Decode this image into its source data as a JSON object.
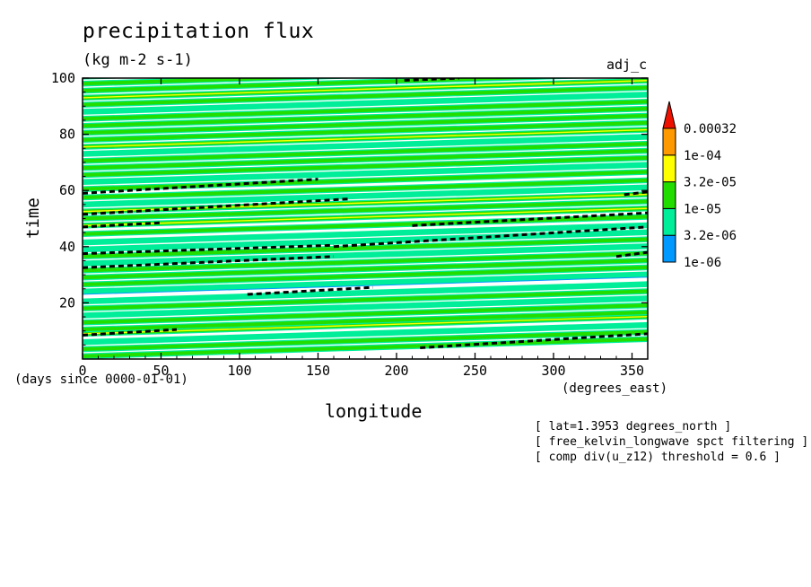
{
  "chart_data": {
    "type": "heatmap",
    "title": "precipitation flux",
    "units": "(kg m-2 s-1)",
    "run_label": "adj_c",
    "xlabel": "longitude",
    "x_units": "(degrees_east)",
    "ylabel": "time",
    "time_origin": "(days since 0000-01-01)",
    "xlim": [
      0,
      360
    ],
    "ylim": [
      0,
      100
    ],
    "x_ticks": [
      0,
      50,
      100,
      150,
      200,
      250,
      300,
      350
    ],
    "y_ticks": [
      20,
      40,
      60,
      80,
      100
    ],
    "colorbar": {
      "labels": [
        "0.00032",
        "1e-04",
        "3.2e-05",
        "1e-05",
        "3.2e-06",
        "1e-06"
      ],
      "colors": [
        "#0099ff",
        "#00ee99",
        "#22dd00",
        "#ffff00",
        "#ff9900",
        "#ee1100"
      ],
      "extend": "max"
    },
    "notes": [
      "[ lat=1.3953 degrees_north ]",
      "[ free_kelvin_longwave spct filtering ]",
      "[ comp div(u_z12) threshold = 0.6 ]"
    ],
    "kelvin_wave_slope_days_per_degree": 0.017,
    "bands": [
      {
        "t0": 1.0,
        "level": 2
      },
      {
        "t0": 3.5,
        "level": 2
      },
      {
        "t0": 6.0,
        "level": 1
      },
      {
        "t0": 9.0,
        "level": 3
      },
      {
        "t0": 10.5,
        "level": 2
      },
      {
        "t0": 13.0,
        "level": 2
      },
      {
        "t0": 15.5,
        "level": 1
      },
      {
        "t0": 18.0,
        "level": 2
      },
      {
        "t0": 20.5,
        "level": 1
      },
      {
        "t0": 24.0,
        "level": 0
      },
      {
        "t0": 26.5,
        "level": 2
      },
      {
        "t0": 29.0,
        "level": 2
      },
      {
        "t0": 31.5,
        "level": 2
      },
      {
        "t0": 34.0,
        "level": 1
      },
      {
        "t0": 36.5,
        "level": 2
      },
      {
        "t0": 39.0,
        "level": 1
      },
      {
        "t0": 41.5,
        "level": 1
      },
      {
        "t0": 44.5,
        "level": 2
      },
      {
        "t0": 47.5,
        "level": 3
      },
      {
        "t0": 50.0,
        "level": 2
      },
      {
        "t0": 52.5,
        "level": 3
      },
      {
        "t0": 55.0,
        "level": 1
      },
      {
        "t0": 57.5,
        "level": 2
      },
      {
        "t0": 60.5,
        "level": 2
      },
      {
        "t0": 63.0,
        "level": 1
      },
      {
        "t0": 65.5,
        "level": 2
      },
      {
        "t0": 68.0,
        "level": 2
      },
      {
        "t0": 70.5,
        "level": 2
      },
      {
        "t0": 73.0,
        "level": 1
      },
      {
        "t0": 75.5,
        "level": 3
      },
      {
        "t0": 78.0,
        "level": 2
      },
      {
        "t0": 80.5,
        "level": 2
      },
      {
        "t0": 83.0,
        "level": 2
      },
      {
        "t0": 85.5,
        "level": 2
      },
      {
        "t0": 88.0,
        "level": 1
      },
      {
        "t0": 90.5,
        "level": 2
      },
      {
        "t0": 93.0,
        "level": 3
      },
      {
        "t0": 95.5,
        "level": 2
      },
      {
        "t0": 98.0,
        "level": 2
      },
      {
        "t0": 100.5,
        "level": 2
      }
    ],
    "divergence_contours": [
      {
        "x": [
          0,
          60
        ],
        "y": [
          8.5,
          10.5
        ]
      },
      {
        "x": [
          215,
          360
        ],
        "y": [
          4,
          9
        ]
      },
      {
        "x": [
          105,
          185
        ],
        "y": [
          23,
          25.5
        ]
      },
      {
        "x": [
          0,
          160
        ],
        "y": [
          32.5,
          36.5
        ]
      },
      {
        "x": [
          0,
          160
        ],
        "y": [
          37.5,
          40.5
        ]
      },
      {
        "x": [
          160,
          360
        ],
        "y": [
          40,
          47
        ]
      },
      {
        "x": [
          340,
          360
        ],
        "y": [
          36.5,
          38
        ]
      },
      {
        "x": [
          0,
          50
        ],
        "y": [
          47,
          48.5
        ]
      },
      {
        "x": [
          210,
          360
        ],
        "y": [
          47.5,
          52
        ]
      },
      {
        "x": [
          0,
          170
        ],
        "y": [
          51.5,
          57
        ]
      },
      {
        "x": [
          0,
          150
        ],
        "y": [
          59,
          64
        ]
      },
      {
        "x": [
          345,
          360
        ],
        "y": [
          58.5,
          59.5
        ]
      },
      {
        "x": [
          205,
          240
        ],
        "y": [
          99.2,
          100
        ]
      }
    ]
  }
}
